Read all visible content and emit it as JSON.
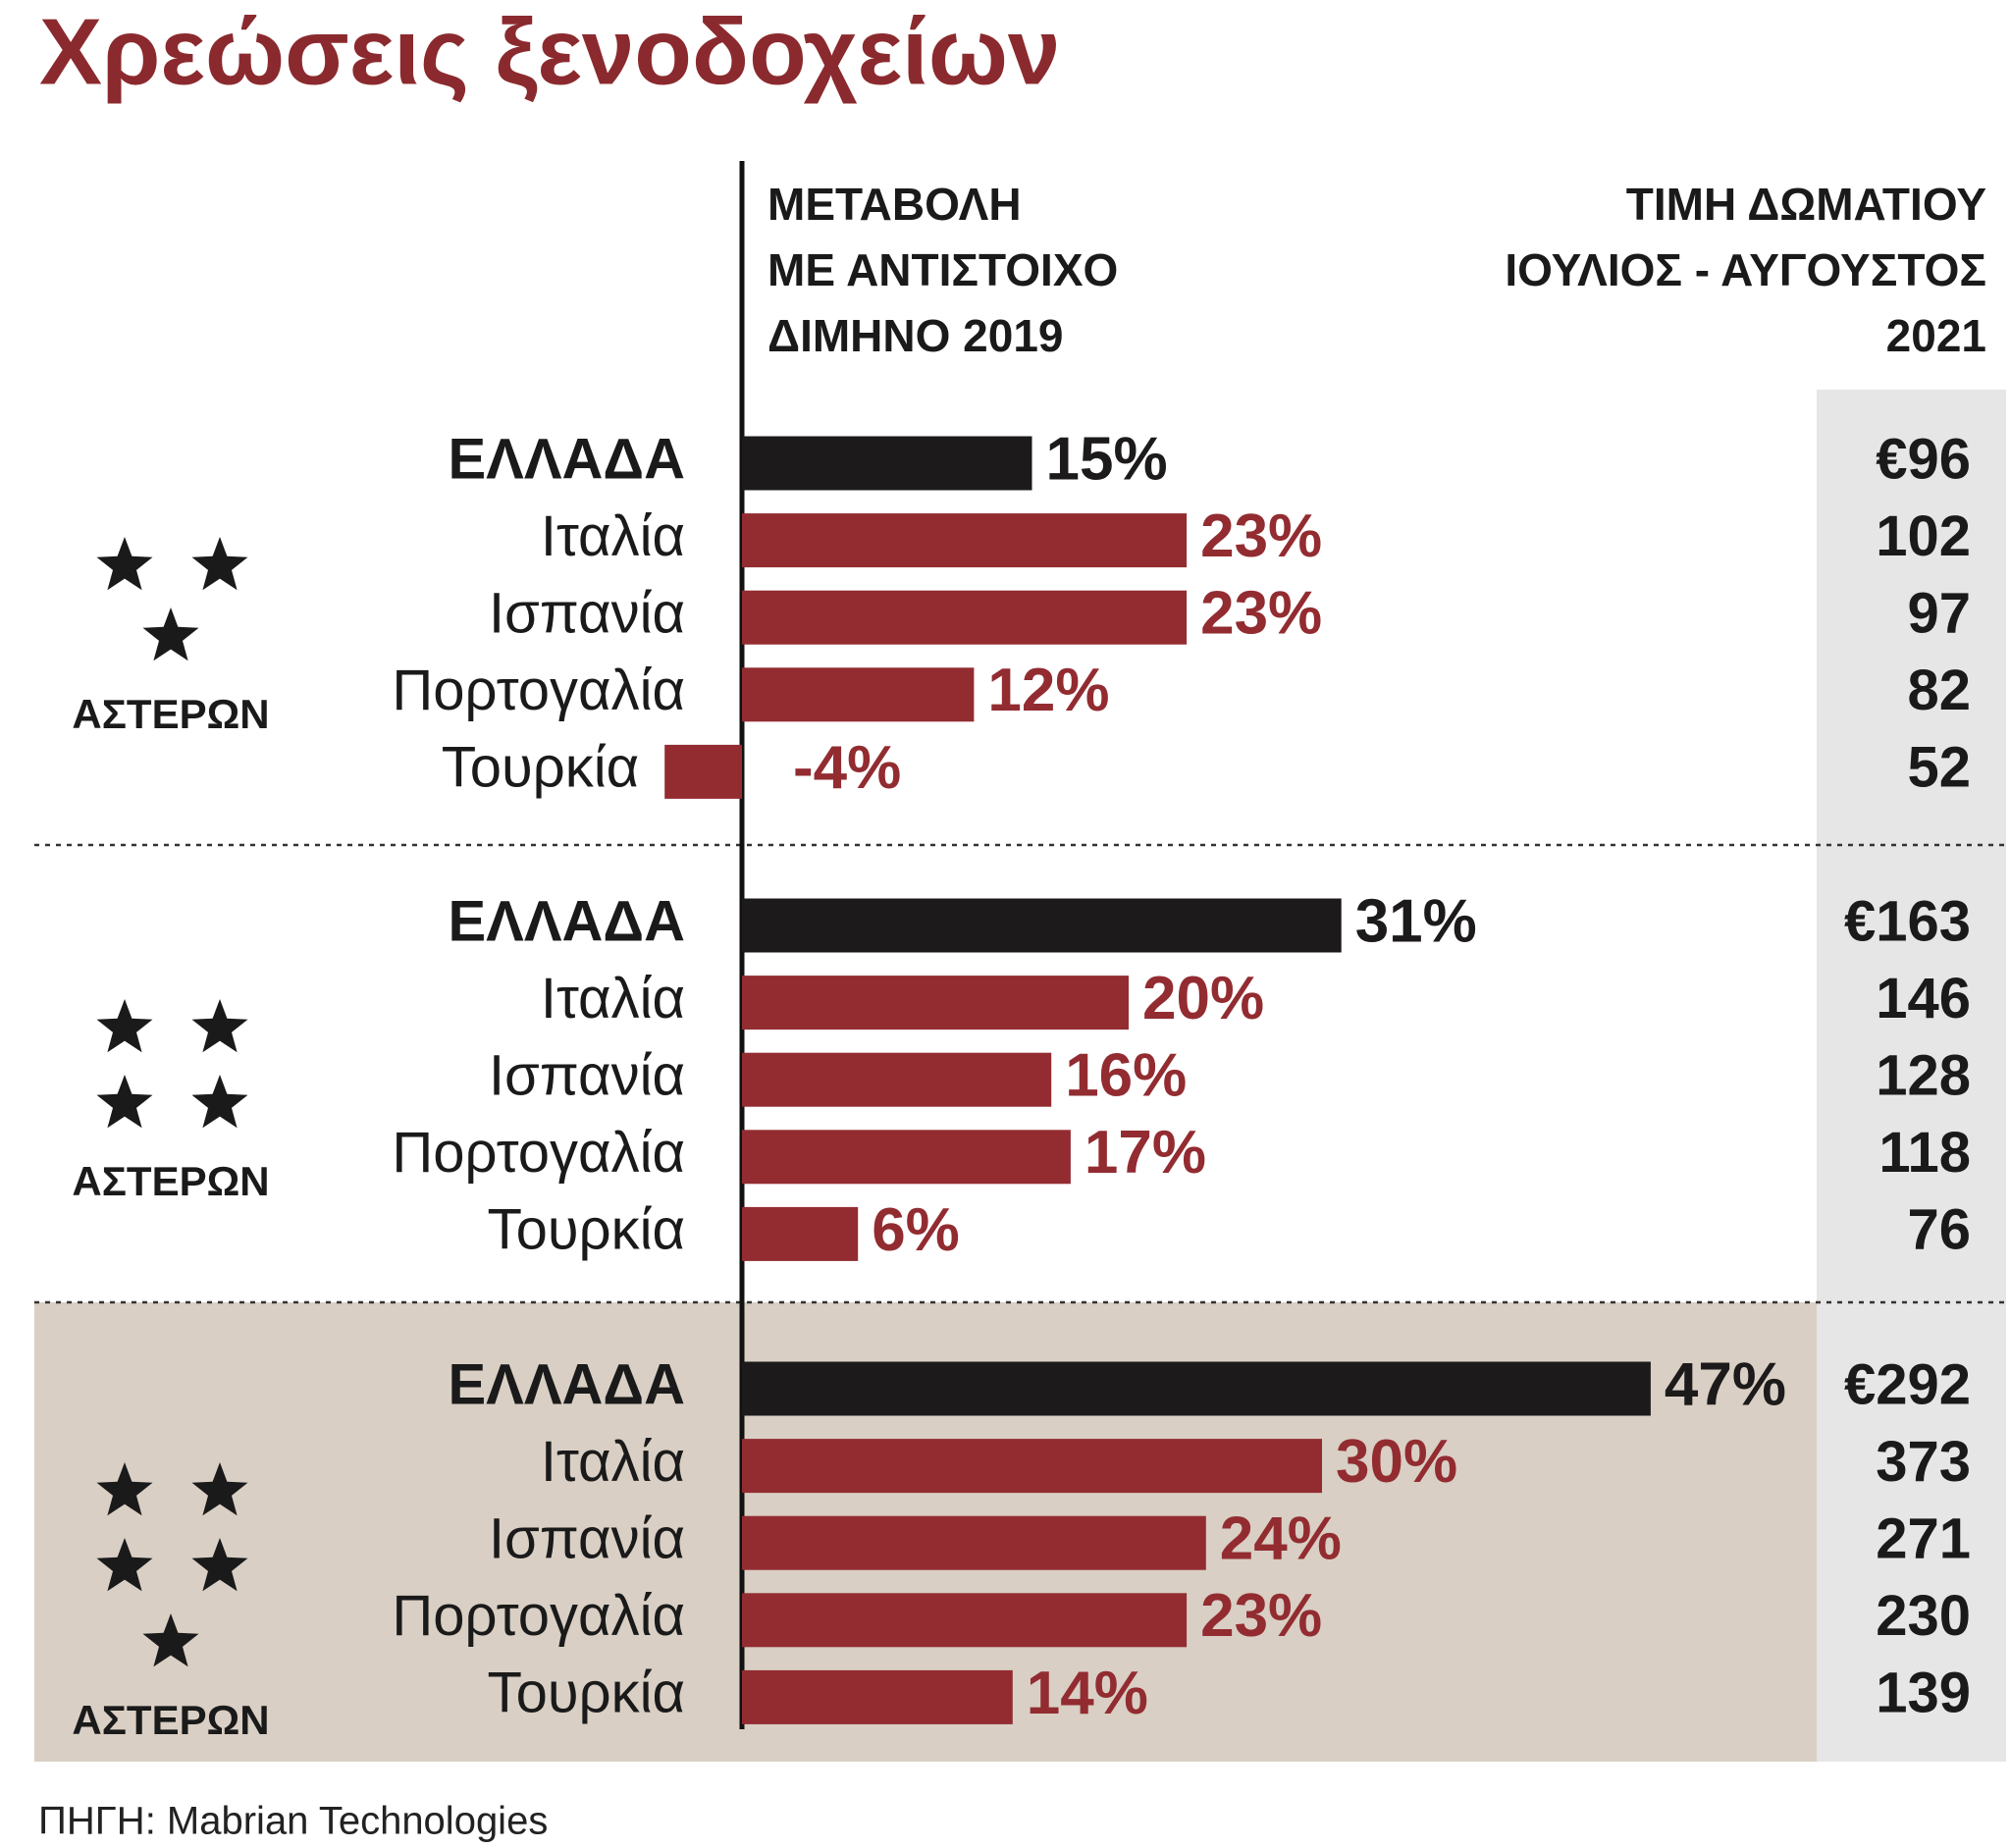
{
  "chart_data": {
    "type": "bar",
    "title": "Χρεώσεις ξενοδοχείων",
    "value_header": [
      "ΜΕΤΑΒΟΛΗ",
      "ΜΕ ΑΝΤΙΣΤΟΙΧΟ",
      "ΔΙΜΗΝΟ 2019"
    ],
    "price_header": [
      "ΤΙΜΗ ΔΩΜΑΤΙΟΥ",
      "ΙΟΥΛΙΟΣ - ΑΥΓΟΥΣΤΟΣ",
      "2021"
    ],
    "highlight_color": "#1c1a1a",
    "color": "#922c31",
    "groups": [
      {
        "stars": 3,
        "label": "ΑΣΤΕΡΩΝ",
        "categories": [
          "ΕΛΛΑΔΑ",
          "Ιταλία",
          "Ισπανία",
          "Πορτογαλία",
          "Τουρκία"
        ],
        "values": [
          15,
          23,
          23,
          12,
          -4
        ],
        "value_labels": [
          "15%",
          "23%",
          "23%",
          "12%",
          "-4%"
        ],
        "prices": [
          "€96",
          "102",
          "97",
          "82",
          "52"
        ]
      },
      {
        "stars": 4,
        "label": "ΑΣΤΕΡΩΝ",
        "categories": [
          "ΕΛΛΑΔΑ",
          "Ιταλία",
          "Ισπανία",
          "Πορτογαλία",
          "Τουρκία"
        ],
        "values": [
          31,
          20,
          16,
          17,
          6
        ],
        "value_labels": [
          "31%",
          "20%",
          "16%",
          "17%",
          "6%"
        ],
        "prices": [
          "€163",
          "146",
          "128",
          "118",
          "76"
        ]
      },
      {
        "stars": 5,
        "label": "ΑΣΤΕΡΩΝ",
        "categories": [
          "ΕΛΛΑΔΑ",
          "Ιταλία",
          "Ισπανία",
          "Πορτογαλία",
          "Τουρκία"
        ],
        "values": [
          47,
          30,
          24,
          23,
          14
        ],
        "value_labels": [
          "47%",
          "30%",
          "24%",
          "23%",
          "14%"
        ],
        "prices": [
          "€292",
          "373",
          "271",
          "230",
          "139"
        ]
      }
    ],
    "source": "ΠΗΓΗ: Mabrian Technologies"
  }
}
